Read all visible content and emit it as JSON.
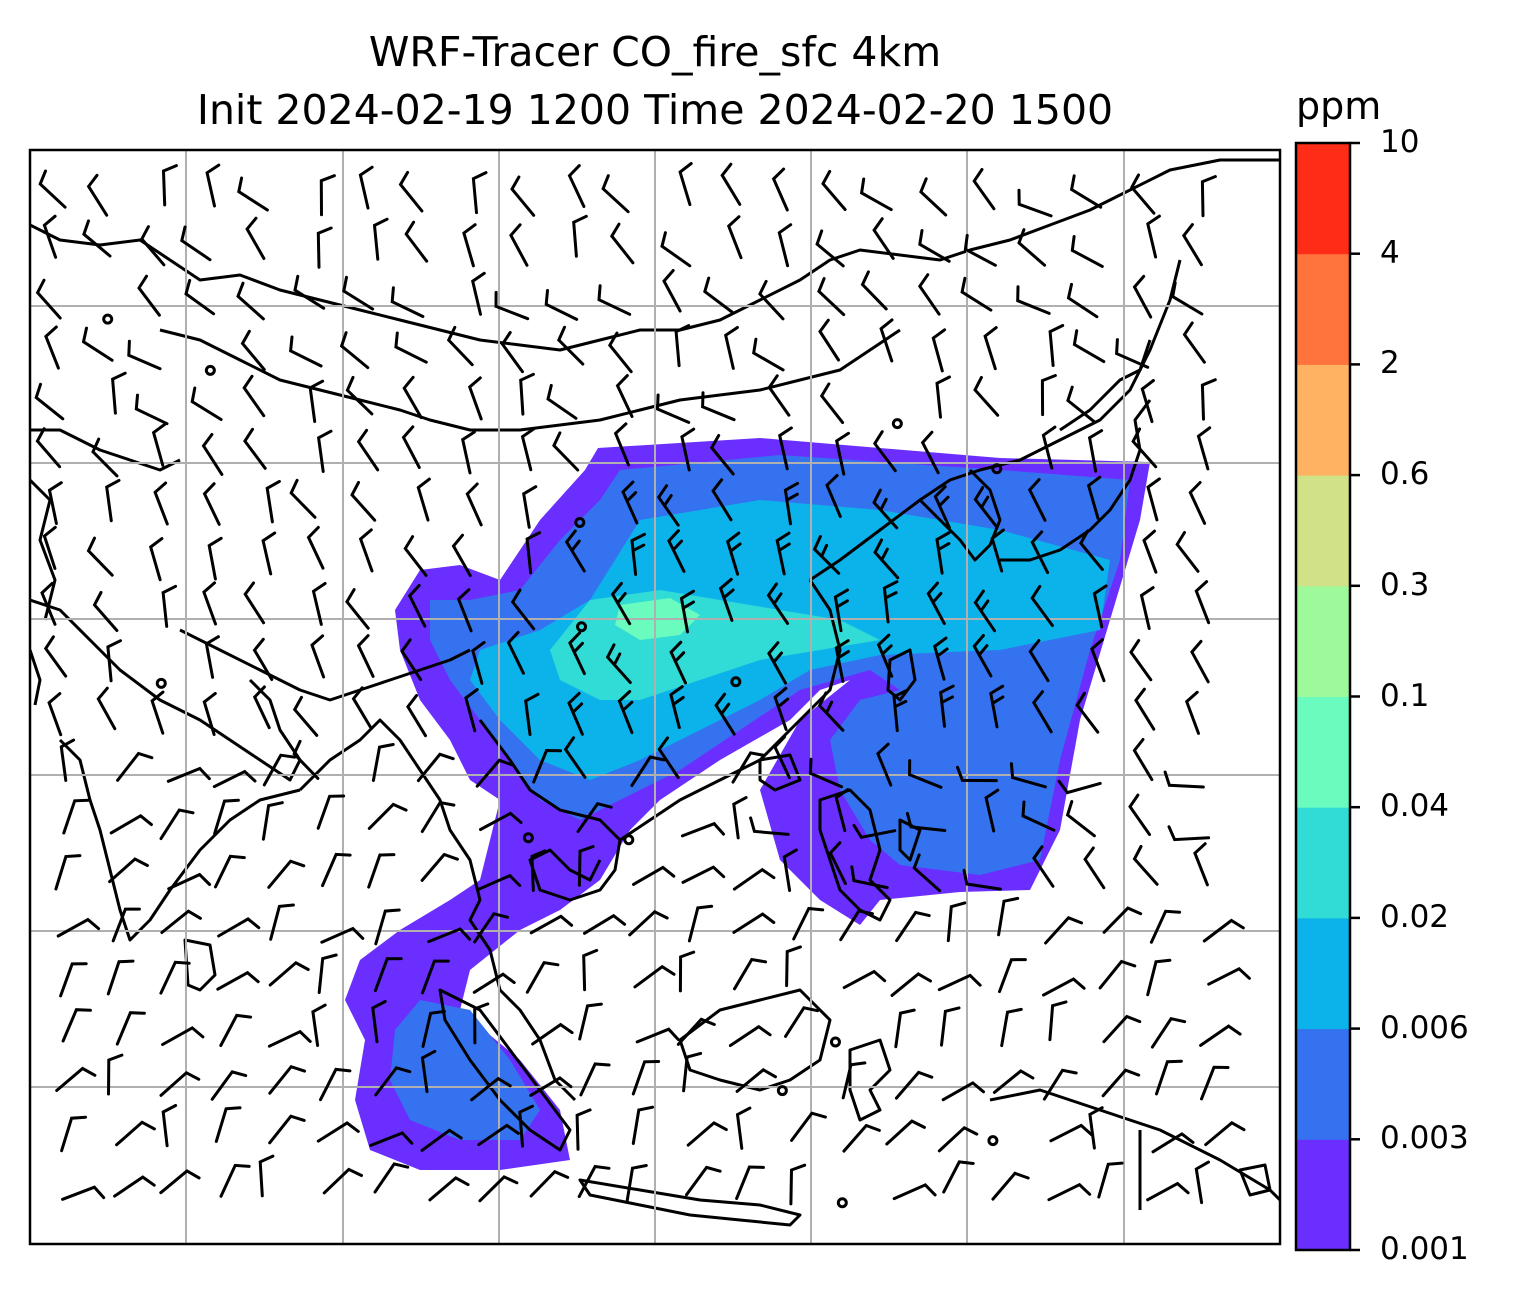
{
  "title_line1": "WRF-Tracer CO_fire_sfc 4km",
  "title_line2": "Init 2024-02-19 1200 Time 2024-02-20 1500",
  "colorbar": {
    "unit": "ppm",
    "ticks": [
      "0.001",
      "0.003",
      "0.006",
      "0.02",
      "0.04",
      "0.1",
      "0.3",
      "0.6",
      "2",
      "4",
      "10"
    ],
    "colors": [
      "#6a2eff",
      "#3572f0",
      "#0cb2ea",
      "#31dbd6",
      "#6afcbf",
      "#9ef99b",
      "#d0e188",
      "#ffb262",
      "#ff733d",
      "#ff2c17"
    ]
  },
  "map": {
    "gridlines": true,
    "wind_barbs": true,
    "calm_markers": true,
    "overlay_colors": {
      "outer": "#6a2eff",
      "mid": "#3572f0",
      "inner": "#0cb2ea",
      "core": "#31dbd6",
      "peak": "#6afcbf"
    }
  }
}
